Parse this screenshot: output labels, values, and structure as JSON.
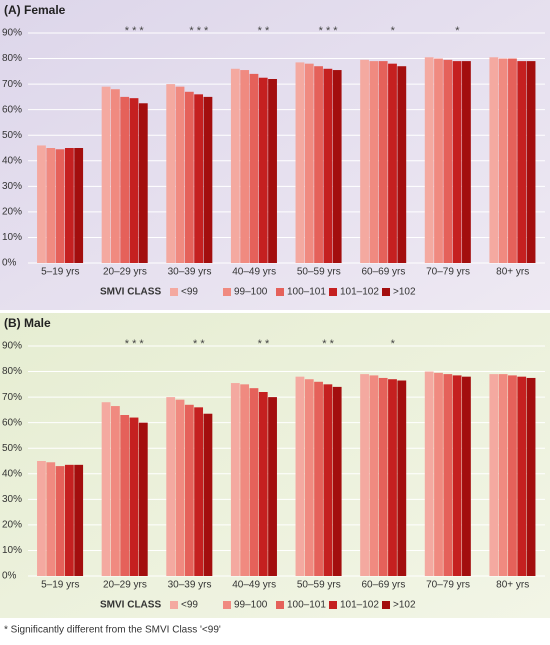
{
  "chart_data": [
    {
      "type": "bar",
      "title": "(A) Female",
      "legend_title": "SMVI CLASS",
      "categories": [
        "5–19 yrs",
        "20–29 yrs",
        "30–39 yrs",
        "40–49 yrs",
        "50–59 yrs",
        "60–69 yrs",
        "70–79 yrs",
        "80+ yrs"
      ],
      "annotations": [
        null,
        "* * *",
        "* * *",
        "* *",
        "* * *",
        "*",
        "*",
        null
      ],
      "series": [
        {
          "name": "<99",
          "color": "#f4a9a0",
          "values": [
            46,
            69,
            70,
            76,
            78.5,
            79.5,
            80.5,
            80.5
          ]
        },
        {
          "name": "99–100",
          "color": "#f08a80",
          "values": [
            45,
            68,
            69,
            75.5,
            78,
            79,
            80,
            80
          ]
        },
        {
          "name": "100–101",
          "color": "#e5615a",
          "values": [
            44.5,
            65,
            67,
            74,
            77,
            79,
            79.5,
            80
          ]
        },
        {
          "name": "101–102",
          "color": "#c52020",
          "values": [
            45,
            64.5,
            66,
            72.5,
            76,
            78,
            79,
            79
          ]
        },
        {
          "name": ">102",
          "color": "#a30e0e",
          "values": [
            45,
            62.5,
            65,
            72,
            75.5,
            77,
            79,
            79
          ]
        }
      ],
      "ylim": [
        0,
        90
      ],
      "yticks": [
        {
          "value": 0,
          "label": "0%"
        },
        {
          "value": 10,
          "label": "10%"
        },
        {
          "value": 20,
          "label": "20%"
        },
        {
          "value": 30,
          "label": "30%"
        },
        {
          "value": 40,
          "label": "40%"
        },
        {
          "value": 50,
          "label": "50%"
        },
        {
          "value": 60,
          "label": "60%"
        },
        {
          "value": 70,
          "label": "70%"
        },
        {
          "value": 80,
          "label": "80%"
        },
        {
          "value": 90,
          "label": "90%"
        }
      ],
      "grid": true
    },
    {
      "type": "bar",
      "title": "(B) Male",
      "legend_title": "SMVI CLASS",
      "categories": [
        "5–19 yrs",
        "20–29 yrs",
        "30–39 yrs",
        "40–49 yrs",
        "50–59 yrs",
        "60–69 yrs",
        "70–79 yrs",
        "80+ yrs"
      ],
      "annotations": [
        null,
        "* * *",
        "* *",
        "* *",
        "* *",
        "*",
        null,
        null
      ],
      "series": [
        {
          "name": "<99",
          "color": "#f4a9a0",
          "values": [
            45,
            68,
            70,
            75.5,
            78,
            79,
            80,
            79
          ]
        },
        {
          "name": "99–100",
          "color": "#f08a80",
          "values": [
            44.5,
            66.5,
            69,
            75,
            77,
            78.5,
            79.5,
            79
          ]
        },
        {
          "name": "100–101",
          "color": "#e5615a",
          "values": [
            43,
            63,
            67,
            73.5,
            76,
            77.5,
            79,
            78.5
          ]
        },
        {
          "name": "101–102",
          "color": "#c52020",
          "values": [
            43.5,
            62,
            66,
            72,
            75,
            77,
            78.5,
            78
          ]
        },
        {
          "name": ">102",
          "color": "#a30e0e",
          "values": [
            43.5,
            60,
            63.5,
            70,
            74,
            76.5,
            78,
            77.5
          ]
        }
      ],
      "ylim": [
        0,
        90
      ],
      "yticks": [
        {
          "value": 0,
          "label": "0%"
        },
        {
          "value": 10,
          "label": "10%"
        },
        {
          "value": 20,
          "label": "20%"
        },
        {
          "value": 30,
          "label": "30%"
        },
        {
          "value": 40,
          "label": "40%"
        },
        {
          "value": 50,
          "label": "50%"
        },
        {
          "value": 60,
          "label": "60%"
        },
        {
          "value": 70,
          "label": "70%"
        },
        {
          "value": 80,
          "label": "80%"
        },
        {
          "value": 90,
          "label": "90%"
        }
      ],
      "grid": true
    }
  ],
  "footnote": "* Significantly different from the SMVI Class '<99'"
}
